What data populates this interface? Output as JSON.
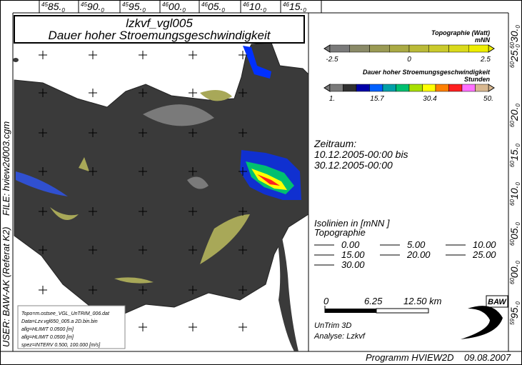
{
  "header": {
    "title": "lzkvf_vgl005",
    "subtitle": "Dauer hoher Stroemungsgeschwindigkeit"
  },
  "top_axis": [
    {
      "sup": "45",
      "main": "85.",
      "sub": "0"
    },
    {
      "sup": "45",
      "main": "90.",
      "sub": "0"
    },
    {
      "sup": "45",
      "main": "95.",
      "sub": "0"
    },
    {
      "sup": "46",
      "main": "00.",
      "sub": "0"
    },
    {
      "sup": "46",
      "main": "05.",
      "sub": "0"
    },
    {
      "sup": "46",
      "main": "10.",
      "sub": "0"
    },
    {
      "sup": "46",
      "main": "15.",
      "sub": "0"
    }
  ],
  "right_axis": [
    {
      "sup": "60",
      "main": "30.",
      "sub": "0"
    },
    {
      "sup": "60",
      "main": "25.",
      "sub": "0"
    },
    {
      "sup": "60",
      "main": "20.",
      "sub": "0"
    },
    {
      "sup": "60",
      "main": "15.",
      "sub": "0"
    },
    {
      "sup": "60",
      "main": "10.",
      "sub": "0"
    },
    {
      "sup": "60",
      "main": "05.",
      "sub": "0"
    },
    {
      "sup": "60",
      "main": "00.",
      "sub": "0"
    },
    {
      "sup": "59",
      "main": "95.",
      "sub": "0"
    }
  ],
  "legend_topo": {
    "title": "Topographie (Watt)",
    "unit": "mNN",
    "ticks": [
      "-2.5",
      "0",
      "2.5"
    ],
    "colors": [
      "#7a7a7a",
      "#8a8a68",
      "#9a9a54",
      "#aaaa44",
      "#baba38",
      "#caca2c",
      "#dada1c",
      "#eeee00"
    ]
  },
  "legend_duration": {
    "title": "Dauer hoher Stroemungsgeschwindigkeit",
    "unit": "Stunden",
    "ticks": [
      "1.",
      "15.7",
      "30.4",
      "50."
    ],
    "colors": [
      "#7a7a7a",
      "#303030",
      "#0000a8",
      "#0060ff",
      "#00a0a8",
      "#00c070",
      "#a8e000",
      "#ffff00",
      "#ff8000",
      "#ff2020",
      "#ff70ff",
      "#d8b890"
    ]
  },
  "period": {
    "label": "Zeitraum:",
    "from": "10.12.2005-00:00 bis",
    "to": "30.12.2005-00:00"
  },
  "isolines": {
    "title": "Isolinien in [mNN      ]",
    "subtitle": "Topographie",
    "levels": [
      "0.00",
      "5.00",
      "10.00",
      "15.00",
      "20.00",
      "25.00",
      "30.00"
    ]
  },
  "scale_bar": {
    "labels": [
      "0",
      "6.25",
      "12.50 km"
    ]
  },
  "model": {
    "name": "UnTrim 3D",
    "analysis": "Analyse: Lzkvf"
  },
  "logo": "BAW",
  "side": {
    "user": "USER: BAW-AK (Referat K2)",
    "file": "FILE: hview2d003.cgm"
  },
  "info_box": [
    "Topo=m.ostsee_VGL_UnTRIM_006.dat",
    "Data=Lzv.vgl650_005.a 2D.bin.bin",
    "allg=HLIMIT   0.0500 [m]",
    "allg=HLIMIT   0.0500 [m]",
    "spez=INTERV   0.500, 100.000 [m/s]"
  ],
  "footer": {
    "program": "Programm HVIEW2D",
    "date": "09.08.2007"
  }
}
